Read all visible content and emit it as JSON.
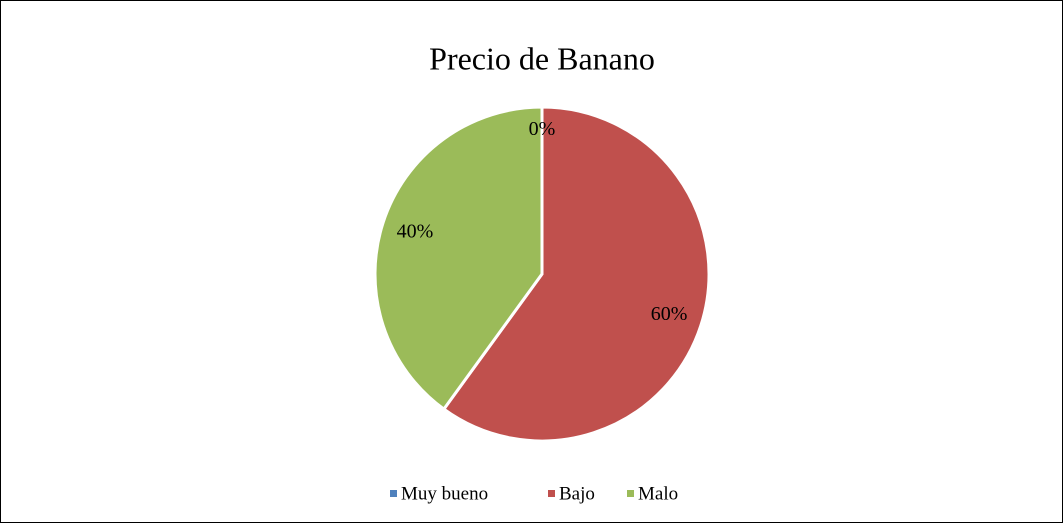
{
  "chart_data": {
    "type": "pie",
    "title": "Precio de Banano",
    "categories": [
      "Muy bueno",
      "Bajo",
      "Malo"
    ],
    "values": [
      0,
      60,
      40
    ],
    "value_labels": [
      "0%",
      "60%",
      "40%"
    ],
    "colors": [
      "#4f81bd",
      "#c0504d",
      "#9bbb59"
    ],
    "legend": "bottom"
  }
}
